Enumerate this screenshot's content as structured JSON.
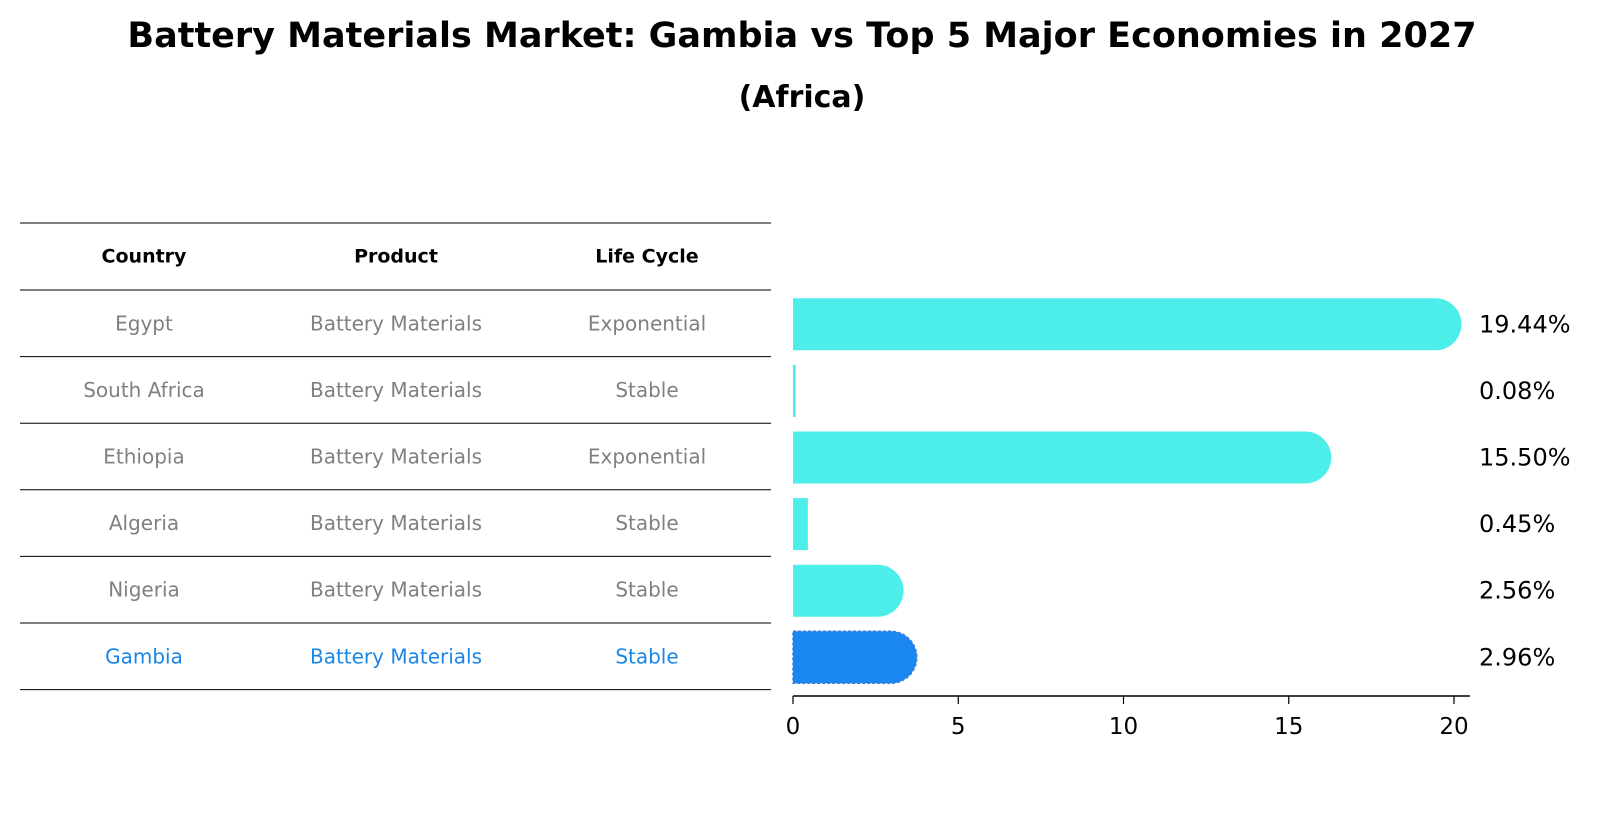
{
  "title": "Battery Materials Market: Gambia vs Top 5 Major Economies in 2027",
  "subtitle": "(Africa)",
  "colors": {
    "bar": "#4dede9",
    "highlight_bar": "#1a86f2",
    "row_text": "#808080",
    "highlight_text": "#1a86e6",
    "line": "#000000"
  },
  "table": {
    "headers": [
      "Country",
      "Product",
      "Life Cycle"
    ],
    "rows": [
      [
        "Egypt",
        "Battery Materials",
        "Exponential"
      ],
      [
        "South Africa",
        "Battery Materials",
        "Stable"
      ],
      [
        "Ethiopia",
        "Battery Materials",
        "Exponential"
      ],
      [
        "Algeria",
        "Battery Materials",
        "Stable"
      ],
      [
        "Nigeria",
        "Battery Materials",
        "Stable"
      ],
      [
        "Gambia",
        "Battery Materials",
        "Stable"
      ]
    ],
    "highlight_row": 5
  },
  "chart_data": {
    "type": "bar",
    "orientation": "horizontal",
    "title": "Battery Materials Market: Gambia vs Top 5 Major Economies in 2027",
    "subtitle": "(Africa)",
    "categories": [
      "Egypt",
      "South Africa",
      "Ethiopia",
      "Algeria",
      "Nigeria",
      "Gambia"
    ],
    "values": [
      19.44,
      0.08,
      15.5,
      0.45,
      2.56,
      2.96
    ],
    "value_labels": [
      "19.44%",
      "0.08%",
      "15.50%",
      "0.45%",
      "2.56%",
      "2.96%"
    ],
    "highlight": "Gambia",
    "xlim": [
      0,
      20.4
    ],
    "xticks": [
      0,
      5,
      10,
      15,
      20
    ],
    "xtick_labels": [
      "0",
      "5",
      "10",
      "15",
      "20"
    ],
    "grid": false,
    "legend": "none"
  }
}
